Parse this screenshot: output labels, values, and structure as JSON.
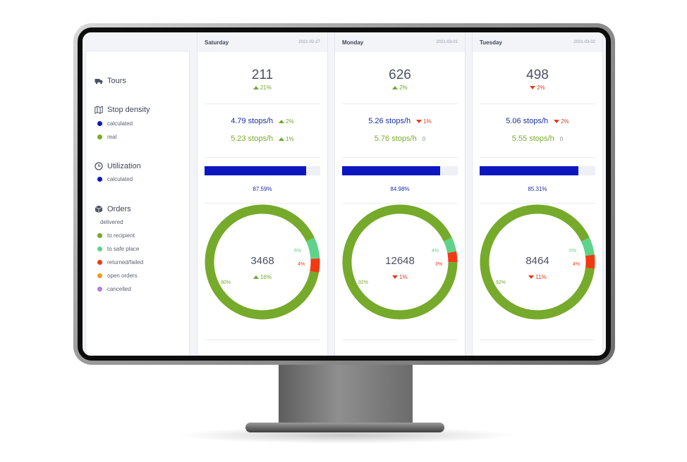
{
  "sidebar": {
    "tours_label": "Tours",
    "stop_density": {
      "title": "Stop density",
      "legend": [
        "calculated",
        "real"
      ]
    },
    "utilization": {
      "title": "Utilization",
      "legend": [
        "calculated"
      ]
    },
    "orders": {
      "title": "Orders",
      "sub": "delivered",
      "legend": [
        "to recipient",
        "to safe place",
        "returned/failed",
        "open orders",
        "cancelled"
      ]
    }
  },
  "colors": {
    "calculated": "#0c17c0",
    "real": "#7aad2a",
    "to_recipient": "#76aa2b",
    "to_safe_place": "#5fd389",
    "returned_failed": "#f03a12",
    "open_orders": "#f39a1c",
    "cancelled": "#b07ee0"
  },
  "days": [
    {
      "day": "Saturday",
      "date": "2021-02-27",
      "tours": "211",
      "tours_change": "21%",
      "tours_dir": "up",
      "calc_rate": "4.79 stops/h",
      "calc_change": "2%",
      "calc_dir": "up",
      "real_rate": "5.23 stops/h",
      "real_change": "1%",
      "real_dir": "up",
      "utilization_value": 0.8759,
      "utilization": "87.59%",
      "orders_total": "3468",
      "orders_change": "16%",
      "orders_dir": "up",
      "donut": {
        "to_recipient": 90,
        "to_safe_place": 6,
        "returned_failed": 4
      },
      "donut_labels": {
        "to_recipient": "90%",
        "to_safe_place": "6%",
        "returned_failed": "4%"
      }
    },
    {
      "day": "Monday",
      "date": "2021-03-01",
      "tours": "626",
      "tours_change": "2%",
      "tours_dir": "up",
      "calc_rate": "5.26 stops/h",
      "calc_change": "1%",
      "calc_dir": "down",
      "real_rate": "5.76 stops/h",
      "real_change": "0",
      "real_dir": "zero",
      "utilization_value": 0.8498,
      "utilization": "84.98%",
      "orders_total": "12648",
      "orders_change": "1%",
      "orders_dir": "down",
      "donut": {
        "to_recipient": 92,
        "to_safe_place": 4,
        "returned_failed": 3
      },
      "donut_labels": {
        "to_recipient": "92%",
        "to_safe_place": "4%",
        "returned_failed": "3%"
      }
    },
    {
      "day": "Tuesday",
      "date": "2021-03-02",
      "tours": "498",
      "tours_change": "2%",
      "tours_dir": "down",
      "calc_rate": "5.06 stops/h",
      "calc_change": "2%",
      "calc_dir": "down",
      "real_rate": "5.55 stops/h",
      "real_change": "0",
      "real_dir": "zero",
      "utilization_value": 0.8531,
      "utilization": "85.31%",
      "orders_total": "8464",
      "orders_change": "11%",
      "orders_dir": "down",
      "donut": {
        "to_recipient": 92,
        "to_safe_place": 5,
        "returned_failed": 4
      },
      "donut_labels": {
        "to_recipient": "92%",
        "to_safe_place": "5%",
        "returned_failed": "4%"
      }
    }
  ]
}
